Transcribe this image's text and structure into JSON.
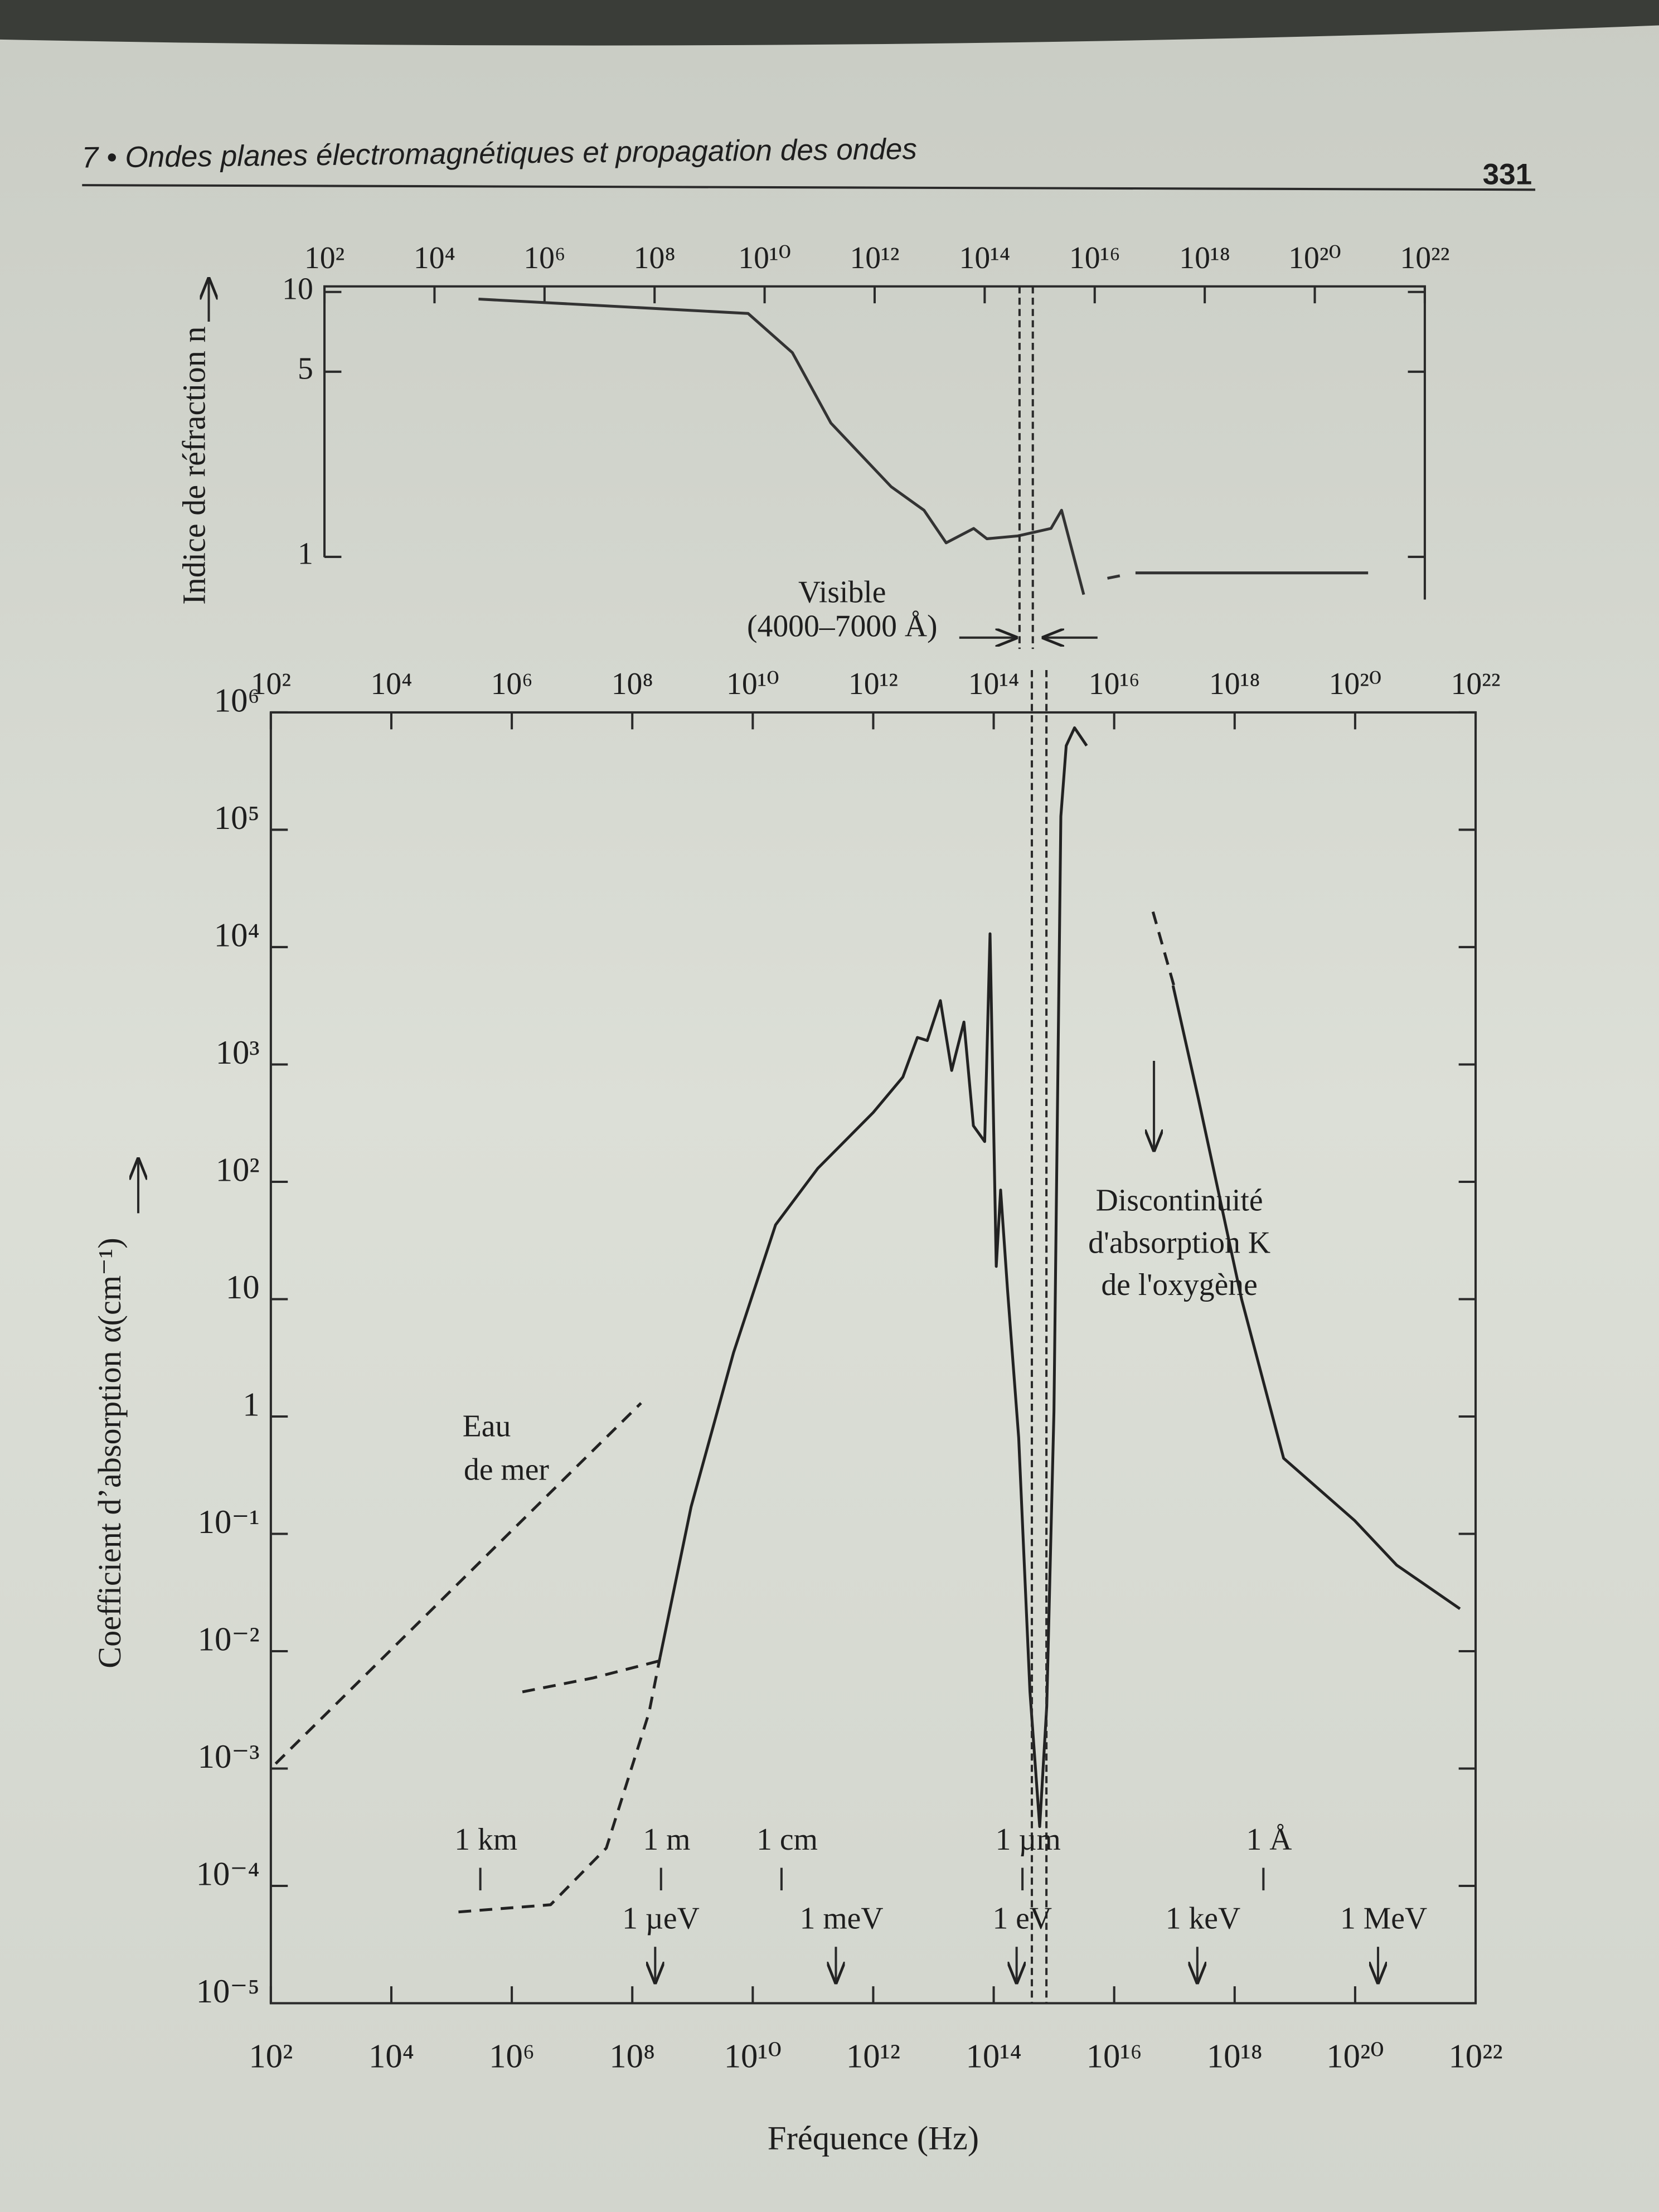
{
  "header": {
    "title": "7 • Ondes planes électromagnétiques et propagation des ondes",
    "page": "331"
  },
  "chart_data": [
    {
      "type": "line",
      "y_label": "Indice de réfraction n",
      "xscale": "log",
      "yscale": "log",
      "xlim": [
        100.0,
        1e+22
      ],
      "ylim": [
        0.69,
        10.5
      ],
      "xticks": [
        {
          "value": 100.0,
          "label": "10²"
        },
        {
          "value": 10000.0,
          "label": "10⁴"
        },
        {
          "value": 1000000.0,
          "label": "10⁶"
        },
        {
          "value": 100000000.0,
          "label": "10⁸"
        },
        {
          "value": 10000000000.0,
          "label": "10¹⁰"
        },
        {
          "value": 1000000000000.0,
          "label": "10¹²"
        },
        {
          "value": 100000000000000.0,
          "label": "10¹⁴"
        },
        {
          "value": 1e+16,
          "label": "10¹⁶"
        },
        {
          "value": 1e+18,
          "label": "10¹⁸"
        },
        {
          "value": 1e+20,
          "label": "10²⁰"
        },
        {
          "value": 1e+22,
          "label": "10²²"
        }
      ],
      "yticks": [
        1,
        5,
        10
      ],
      "series": [
        {
          "color": "#333333",
          "style": "solid",
          "x": [
            63000.0,
            5000000000.0,
            32000000000.0,
            160000000000.0,
            2000000000000.0,
            7900000000000.0,
            20000000000000.0,
            63000000000000.0,
            110000000000000.0,
            400000000000000.0,
            1600000000000000.0,
            2500000000000000.0,
            6300000000000000.0,
            null,
            5.5e+16,
            9.3e+20
          ],
          "values": [
            9.4,
            8.3,
            5.9,
            3.2,
            1.84,
            1.5,
            1.13,
            1.28,
            1.17,
            1.2,
            1.28,
            1.5,
            0.72,
            null,
            0.87,
            0.87
          ]
        },
        {
          "color": "#333333",
          "style": "dashed",
          "x": [
            1.7e+16,
            4e+16
          ],
          "values": [
            0.83,
            0.86
          ]
        }
      ],
      "visible_band": [
        430000000000000.0,
        750000000000000.0
      ],
      "visible_label": [
        "Visible",
        "(4000–7000 Å)"
      ]
    },
    {
      "type": "line",
      "y_label": "Coefficient d’absorption α(cm⁻¹)",
      "x_label": "Fréquence (Hz)",
      "xscale": "log",
      "yscale": "log",
      "xlim": [
        100.0,
        1e+22
      ],
      "ylim": [
        1e-05,
        1000000.0
      ],
      "xticks": [
        {
          "value": 100.0,
          "label": "10²"
        },
        {
          "value": 10000.0,
          "label": "10⁴"
        },
        {
          "value": 1000000.0,
          "label": "10⁶"
        },
        {
          "value": 100000000.0,
          "label": "10⁸"
        },
        {
          "value": 10000000000.0,
          "label": "10¹⁰"
        },
        {
          "value": 1000000000000.0,
          "label": "10¹²"
        },
        {
          "value": 100000000000000.0,
          "label": "10¹⁴"
        },
        {
          "value": 1e+16,
          "label": "10¹⁶"
        },
        {
          "value": 1e+18,
          "label": "10¹⁸"
        },
        {
          "value": 1e+20,
          "label": "10²⁰"
        },
        {
          "value": 1e+22,
          "label": "10²²"
        }
      ],
      "yticks": [
        {
          "value": 1e-05,
          "label": "10⁻⁵"
        },
        {
          "value": 0.0001,
          "label": "10⁻⁴"
        },
        {
          "value": 0.001,
          "label": "10⁻³"
        },
        {
          "value": 0.01,
          "label": "10⁻²"
        },
        {
          "value": 0.1,
          "label": "10⁻¹"
        },
        1,
        10,
        {
          "value": 100,
          "label": "10²"
        },
        {
          "value": 1000.0,
          "label": "10³"
        },
        {
          "value": 10000.0,
          "label": "10⁴"
        },
        {
          "value": 100000.0,
          "label": "10⁵"
        },
        {
          "value": 1000000.0,
          "label": "10⁶"
        }
      ],
      "series": [
        {
          "color": "#222222",
          "style": "solid",
          "x": [
            290000000.0,
            950000000.0,
            4800000000.0,
            24000000000.0,
            120000000000.0,
            1000000000000.0,
            3100000000000.0,
            5400000000000.0,
            7900000000000.0,
            13000000000000.0,
            20000000000000.0,
            32000000000000.0,
            46000000000000.0,
            71000000000000.0,
            87000000000000.0,
            110000000000000.0,
            130000000000000.0,
            170000000000000.0,
            260000000000000.0,
            400000000000000.0,
            580000000000000.0,
            760000000000000.0,
            1000000000000000.0,
            1300000000000000.0,
            1600000000000000.0,
            2200000000000000.0,
            3500000000000000.0,
            null,
            9.5e+16,
            2.5e+17,
            1.3e+18,
            6.5e+18,
            9.8e+19,
            4.9e+20,
            5.5e+21
          ],
          "values": [
            0.0089,
            0.17,
            3.5,
            43,
            130,
            390,
            780,
            1700,
            1600,
            3500,
            890,
            2300,
            300,
            220,
            13000.0,
            19,
            85,
            12,
            0.66,
            0.0045,
            0.00032,
            0.0034,
            1.1,
            130000.0,
            520000.0,
            740000.0,
            520000.0,
            null,
            4700,
            510,
            10,
            0.44,
            0.13,
            0.054,
            0.023
          ]
        },
        {
          "color": "#222222",
          "style": "dashed",
          "x": [
            130000.0,
            4400000.0,
            37000000.0,
            190000000.0,
            290000000.0,
            null,
            1500000.0,
            22000000.0,
            290000000.0,
            null,
            4.4e+16,
            9.8e+16
          ],
          "values": [
            6e-05,
            6.9e-05,
            0.00021,
            0.003,
            0.0089,
            null,
            0.0045,
            0.0059,
            0.0083,
            null,
            20000.0,
            4700
          ]
        },
        {
          "color": "#222222",
          "style": "dashed",
          "x": [
            120.0,
            140000000.0
          ],
          "values": [
            0.0011,
            1.3
          ]
        }
      ],
      "sea_water_label": [
        "Eau",
        "de mer"
      ],
      "k_edge_label": [
        "Discontinuité",
        "d'absorption K",
        "de l'oxygène"
      ],
      "wavelength_markers": [
        {
          "label": "1 km",
          "x": 300000.0
        },
        {
          "label": "1 m",
          "x": 300000000.0
        },
        {
          "label": "1 cm",
          "x": 30000000000.0
        },
        {
          "label": "1 µm",
          "x": 300000000000000.0
        },
        {
          "label": "1 Å",
          "x": 3e+18
        }
      ],
      "energy_markers": [
        {
          "label": "1 µeV",
          "x": 240000000.0
        },
        {
          "label": "1 meV",
          "x": 240000000000.0
        },
        {
          "label": "1 eV",
          "x": 240000000000000.0
        },
        {
          "label": "1 keV",
          "x": 2.4e+17
        },
        {
          "label": "1 MeV",
          "x": 2.4e+20
        }
      ]
    }
  ]
}
